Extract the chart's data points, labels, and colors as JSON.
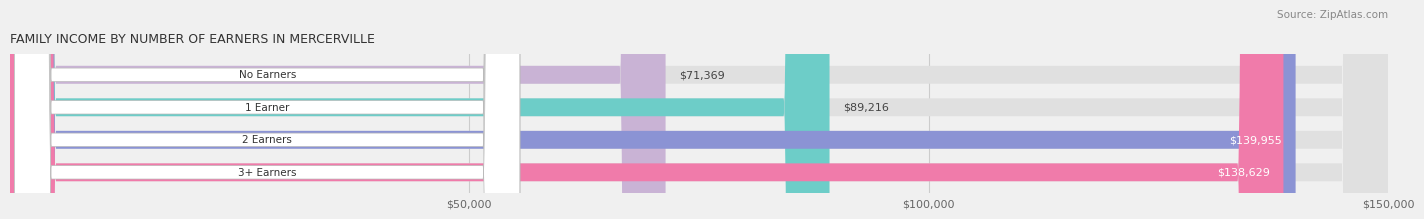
{
  "title": "FAMILY INCOME BY NUMBER OF EARNERS IN MERCERVILLE",
  "source": "Source: ZipAtlas.com",
  "categories": [
    "No Earners",
    "1 Earner",
    "2 Earners",
    "3+ Earners"
  ],
  "values": [
    71369,
    89216,
    139955,
    138629
  ],
  "bar_colors": [
    "#c9b3d5",
    "#6dcdc8",
    "#8b93d4",
    "#f07baa"
  ],
  "bar_labels": [
    "$71,369",
    "$89,216",
    "$139,955",
    "$138,629"
  ],
  "xmin": 0,
  "xmax": 150000,
  "xticks": [
    50000,
    100000,
    150000
  ],
  "xtick_labels": [
    "$50,000",
    "$100,000",
    "$150,000"
  ],
  "background_color": "#f0f0f0",
  "bar_background": "#e8e8e8",
  "figwidth": 14.06,
  "figheight": 2.33
}
